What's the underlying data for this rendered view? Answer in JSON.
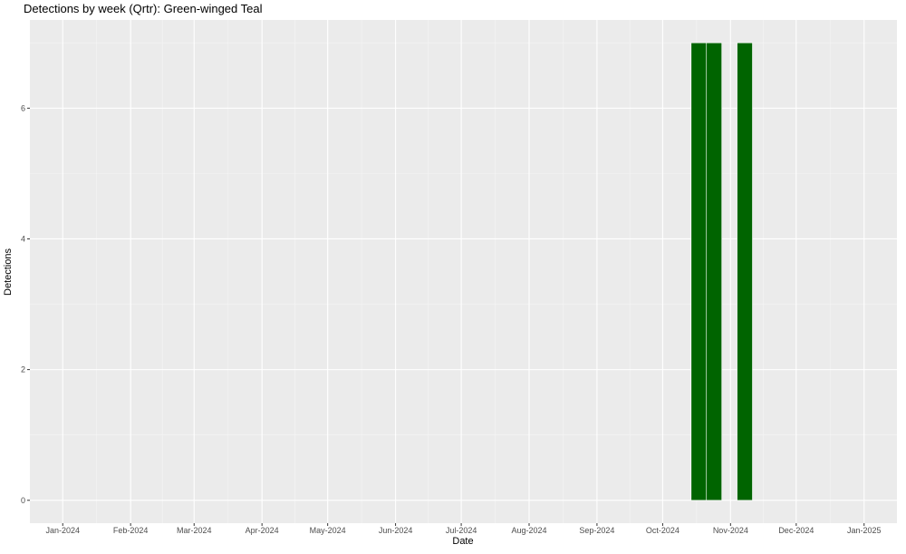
{
  "chart_data": {
    "type": "bar",
    "title": "Detections by week (Qrtr): Green-winged Teal",
    "xlabel": "Date",
    "ylabel": "Detections",
    "x_type": "date",
    "xlim": [
      "2023-12-17",
      "2025-01-16"
    ],
    "ylim": [
      -0.35,
      7.35
    ],
    "x_ticks": [
      {
        "date": "2024-01-01",
        "label": "Jan-2024"
      },
      {
        "date": "2024-02-01",
        "label": "Feb-2024"
      },
      {
        "date": "2024-03-01",
        "label": "Mar-2024"
      },
      {
        "date": "2024-04-01",
        "label": "Apr-2024"
      },
      {
        "date": "2024-05-01",
        "label": "May-2024"
      },
      {
        "date": "2024-06-01",
        "label": "Jun-2024"
      },
      {
        "date": "2024-07-01",
        "label": "Jul-2024"
      },
      {
        "date": "2024-08-01",
        "label": "Aug-2024"
      },
      {
        "date": "2024-09-01",
        "label": "Sep-2024"
      },
      {
        "date": "2024-10-01",
        "label": "Oct-2024"
      },
      {
        "date": "2024-11-01",
        "label": "Nov-2024"
      },
      {
        "date": "2024-12-01",
        "label": "Dec-2024"
      },
      {
        "date": "2025-01-01",
        "label": "Jan-2025"
      }
    ],
    "y_ticks": [
      0,
      2,
      4,
      6
    ],
    "grid": true,
    "bar_color": "#006400",
    "bar_width_days": 7,
    "bars": [
      {
        "week_start": "2024-10-14",
        "value": 7
      },
      {
        "week_start": "2024-10-21",
        "value": 7
      },
      {
        "week_start": "2024-11-04",
        "value": 7
      }
    ]
  }
}
